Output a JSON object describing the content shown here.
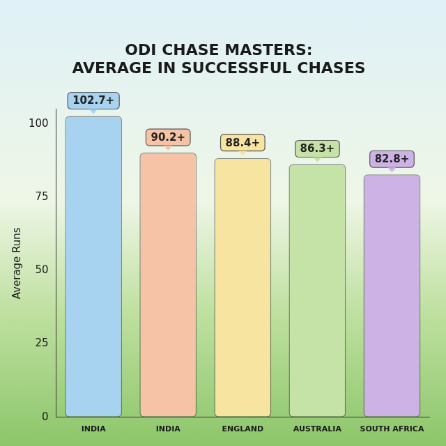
{
  "chart_data": {
    "type": "bar",
    "title": "ODI CHASE MASTERS: AVERAGE IN SUCCESSFUL CHASES",
    "y_label": "Average Runs",
    "categories": [
      "INDIA",
      "INDIA",
      "ENGLAND",
      "AUSTRALIA",
      "SOUTH AFRICA"
    ],
    "values": [
      102.7,
      90.2,
      88.4,
      86.3,
      82.8
    ],
    "value_labels": [
      "102.7+",
      "90.2+",
      "88.4+",
      "86.3+",
      "82.8+"
    ],
    "colors": [
      "#a8d3f0",
      "#f6c3a6",
      "#f7e4a0",
      "#c5e3a6",
      "#cdb2e6"
    ],
    "ylim": [
      0,
      105
    ],
    "yticks": [
      0,
      25,
      50,
      75,
      100
    ],
    "grid": false,
    "data_labels": true
  }
}
